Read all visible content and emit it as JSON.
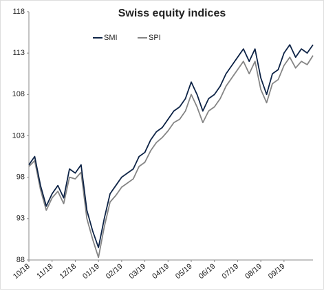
{
  "chart_data": {
    "type": "line",
    "title": "Swiss equity indices",
    "categories": [
      "10/18",
      null,
      null,
      null,
      "11/18",
      null,
      null,
      null,
      "12/18",
      null,
      null,
      null,
      "01/19",
      null,
      null,
      null,
      "02/19",
      null,
      null,
      null,
      "03/19",
      null,
      null,
      null,
      "04/19",
      null,
      null,
      null,
      "05/19",
      null,
      null,
      null,
      "06/19",
      null,
      null,
      null,
      "07/19",
      null,
      null,
      null,
      "08/19",
      null,
      null,
      null,
      "09/19",
      null,
      null,
      null,
      null,
      null
    ],
    "series": [
      {
        "name": "SMI",
        "color": "#0d2346",
        "values": [
          99.5,
          100.5,
          97,
          94.5,
          96,
          97,
          95.5,
          99,
          98.5,
          99.5,
          94,
          91.5,
          89.5,
          93,
          96,
          97,
          98,
          98.5,
          99,
          100.5,
          101,
          102.5,
          103.5,
          104,
          105,
          106,
          106.5,
          107.5,
          109.5,
          108,
          106,
          107.5,
          108,
          109,
          110.5,
          111.5,
          112.5,
          113.5,
          112,
          113.5,
          110,
          108,
          110.5,
          111,
          113,
          114,
          112.5,
          113.5,
          113,
          114
        ]
      },
      {
        "name": "SPI",
        "color": "#858585",
        "values": [
          99.3,
          100,
          96.5,
          94,
          95.5,
          96.3,
          94.8,
          98,
          97.8,
          98.6,
          93,
          90.5,
          88.3,
          92,
          95,
          95.8,
          96.8,
          97.3,
          97.8,
          99.3,
          99.8,
          101.2,
          102.2,
          102.8,
          103.6,
          104.6,
          105,
          106,
          108,
          106.5,
          104.6,
          106,
          106.5,
          107.5,
          109,
          110,
          111,
          112,
          110.5,
          112,
          108.6,
          107,
          109.3,
          109.8,
          111.5,
          112.5,
          111.2,
          112,
          111.6,
          112.7
        ]
      }
    ],
    "ylim": [
      88,
      118
    ],
    "yticks": [
      88,
      93,
      98,
      103,
      108,
      113,
      118
    ]
  }
}
